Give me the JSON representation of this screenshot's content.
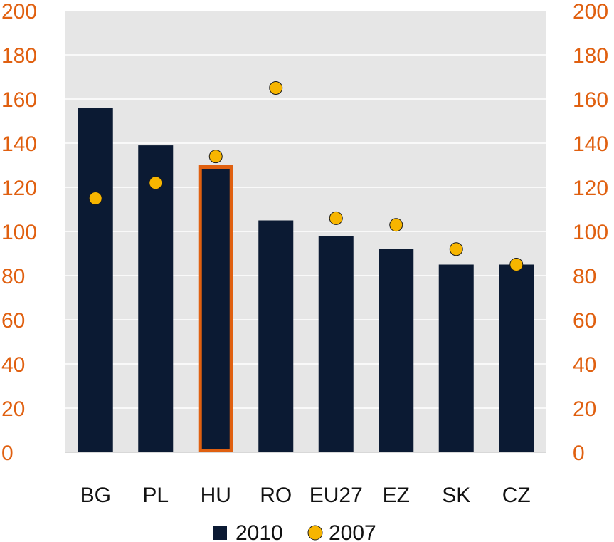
{
  "chart_data": {
    "type": "bar",
    "categories": [
      "BG",
      "PL",
      "HU",
      "RO",
      "EU27",
      "EZ",
      "SK",
      "CZ"
    ],
    "series": [
      {
        "name": "2010",
        "kind": "bar",
        "values": [
          156,
          139,
          130,
          105,
          98,
          92,
          85,
          85
        ]
      },
      {
        "name": "2007",
        "kind": "scatter",
        "values": [
          115,
          122,
          134,
          165,
          106,
          103,
          92,
          85
        ]
      }
    ],
    "title": "",
    "xlabel": "",
    "ylabel": "",
    "ylim": [
      0,
      200
    ],
    "y_ticks": [
      0,
      20,
      40,
      60,
      80,
      100,
      120,
      140,
      160,
      180,
      200
    ],
    "secondary_y_ticks": [
      0,
      20,
      40,
      60,
      80,
      100,
      120,
      140,
      160,
      180,
      200
    ],
    "highlighted_category": "HU",
    "grid": true,
    "legend_position": "bottom",
    "colors": {
      "bar": "#0b1a33",
      "marker": "#f7b500",
      "marker_outline": "#1a1a1a",
      "axis_text": "#e06010",
      "highlight_outline": "#e06010",
      "plot_background": "#e6e6e6",
      "gridline": "#ffffff"
    }
  }
}
